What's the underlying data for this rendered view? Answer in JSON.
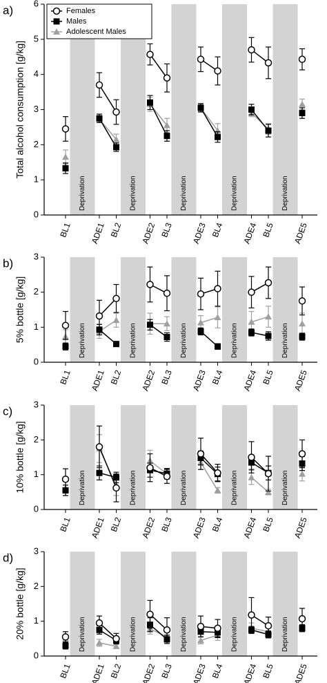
{
  "chart_data": [
    {
      "type": "line",
      "panel_label": "a)",
      "ylabel": "Total alcohol consumption [g/kg]",
      "shaded_label": "Deprivation",
      "legend": "upper left",
      "categories": [
        "BL1",
        "ADE1",
        "BL2",
        "ADE2",
        "BL3",
        "ADE3",
        "BL4",
        "ADE4",
        "BL5",
        "ADE5"
      ],
      "ylim": [
        0,
        6
      ],
      "yticks": [
        0,
        1,
        2,
        3,
        4,
        5,
        6
      ],
      "series": [
        {
          "name": "Females",
          "color": "#000000",
          "marker": "circle",
          "values": [
            2.45,
            3.7,
            2.93,
            4.57,
            3.9,
            4.43,
            4.1,
            4.7,
            4.33,
            4.43
          ],
          "errors": [
            0.35,
            0.35,
            0.35,
            0.3,
            0.4,
            0.35,
            0.4,
            0.35,
            0.45,
            0.3
          ]
        },
        {
          "name": "Males",
          "color": "#000000",
          "marker": "square",
          "values": [
            1.33,
            2.75,
            1.93,
            3.2,
            2.25,
            3.05,
            2.22,
            3.0,
            2.4,
            2.9
          ],
          "errors": [
            0.15,
            0.12,
            0.12,
            0.2,
            0.15,
            0.12,
            0.15,
            0.15,
            0.18,
            0.15
          ]
        },
        {
          "name": "Adolescent Males",
          "color": "#a0a0a0",
          "marker": "triangle",
          "values": [
            1.65,
            2.73,
            2.15,
            3.15,
            2.55,
            3.05,
            2.4,
            2.9,
            2.45,
            3.15
          ],
          "errors": [
            0.2,
            0.1,
            0.15,
            0.2,
            0.2,
            0.1,
            0.2,
            0.1,
            0.15,
            0.15
          ]
        }
      ]
    },
    {
      "type": "line",
      "panel_label": "b)",
      "ylabel": "5% bottle [g/kg]",
      "shaded_label": "Deprivation",
      "categories": [
        "BL1",
        "ADE1",
        "BL2",
        "ADE2",
        "BL3",
        "ADE3",
        "BL4",
        "ADE4",
        "BL5",
        "ADE5"
      ],
      "ylim": [
        0,
        3
      ],
      "yticks": [
        0,
        1,
        2,
        3
      ],
      "series": [
        {
          "color": "#000000",
          "marker": "circle",
          "values": [
            1.05,
            1.32,
            1.82,
            2.22,
            1.97,
            1.95,
            2.1,
            2.0,
            2.27,
            1.75
          ],
          "errors": [
            0.4,
            0.45,
            0.4,
            0.5,
            0.5,
            0.45,
            0.5,
            0.45,
            0.45,
            0.4
          ]
        },
        {
          "color": "#000000",
          "marker": "square",
          "values": [
            0.45,
            0.93,
            0.52,
            1.07,
            0.72,
            0.88,
            0.45,
            0.85,
            0.75,
            0.73
          ],
          "errors": [
            0.1,
            0.15,
            0.05,
            0.15,
            0.12,
            0.1,
            0.08,
            0.1,
            0.12,
            0.1
          ]
        },
        {
          "color": "#a0a0a0",
          "marker": "triangle",
          "values": [
            0.73,
            0.88,
            1.2,
            1.1,
            1.1,
            1.13,
            1.28,
            1.15,
            1.3,
            1.1
          ],
          "errors": [
            0.2,
            0.2,
            0.2,
            0.3,
            0.2,
            0.2,
            0.3,
            0.3,
            0.3,
            0.3
          ]
        }
      ]
    },
    {
      "type": "line",
      "panel_label": "c)",
      "ylabel": "10% bottle [g/kg]",
      "shaded_label": "Deprivation",
      "categories": [
        "BL1",
        "ADE1",
        "BL2",
        "ADE2",
        "BL3",
        "ADE3",
        "BL4",
        "ADE4",
        "BL5",
        "ADE5"
      ],
      "ylim": [
        0,
        3
      ],
      "yticks": [
        0,
        1,
        2,
        3
      ],
      "series": [
        {
          "color": "#000000",
          "marker": "circle",
          "values": [
            0.87,
            1.8,
            0.62,
            1.2,
            0.95,
            1.6,
            1.05,
            1.5,
            1.03,
            1.6
          ],
          "errors": [
            0.3,
            0.6,
            0.4,
            0.4,
            0.2,
            0.45,
            0.25,
            0.45,
            0.5,
            0.4
          ]
        },
        {
          "color": "#000000",
          "marker": "square",
          "values": [
            0.55,
            1.05,
            0.92,
            1.13,
            1.03,
            1.48,
            1.02,
            1.35,
            1.05,
            1.32
          ],
          "errors": [
            0.15,
            0.2,
            0.15,
            0.2,
            0.15,
            0.2,
            0.2,
            0.2,
            0.2,
            0.2
          ]
        },
        {
          "color": "#a0a0a0",
          "marker": "triangle",
          "values": [
            0.6,
            1.75,
            0.7,
            1.4,
            1.02,
            1.35,
            0.55,
            0.92,
            0.5,
            1.02
          ],
          "errors": [
            0.2,
            0.4,
            0.3,
            0.3,
            0.15,
            0.2,
            0.08,
            0.2,
            0.08,
            0.2
          ]
        }
      ]
    },
    {
      "type": "line",
      "panel_label": "d)",
      "ylabel": "20% bottle [g/kg]",
      "shaded_label": "Deprivation",
      "categories": [
        "BL1",
        "ADE1",
        "BL2",
        "ADE2",
        "BL3",
        "ADE3",
        "BL4",
        "ADE4",
        "BL5",
        "ADE5"
      ],
      "ylim": [
        0,
        3
      ],
      "yticks": [
        0,
        1,
        2,
        3
      ],
      "series": [
        {
          "color": "#000000",
          "marker": "circle",
          "values": [
            0.55,
            0.95,
            0.5,
            1.2,
            0.75,
            0.85,
            0.8,
            1.18,
            0.87,
            1.07
          ],
          "errors": [
            0.15,
            0.2,
            0.15,
            0.4,
            0.35,
            0.3,
            0.25,
            0.5,
            0.25,
            0.3
          ]
        },
        {
          "color": "#000000",
          "marker": "square",
          "values": [
            0.3,
            0.75,
            0.45,
            0.9,
            0.48,
            0.7,
            0.68,
            0.75,
            0.62,
            0.8
          ],
          "errors": [
            0.1,
            0.12,
            0.1,
            0.2,
            0.12,
            0.15,
            0.15,
            0.1,
            0.1,
            0.1
          ]
        },
        {
          "color": "#a0a0a0",
          "marker": "triangle",
          "values": [
            0.5,
            0.38,
            0.28,
            0.78,
            0.55,
            0.45,
            0.6,
            0.8,
            0.7,
            0.8
          ],
          "errors": [
            0.1,
            0.1,
            0.05,
            0.15,
            0.15,
            0.1,
            0.15,
            0.15,
            0.12,
            0.1
          ]
        }
      ]
    }
  ]
}
